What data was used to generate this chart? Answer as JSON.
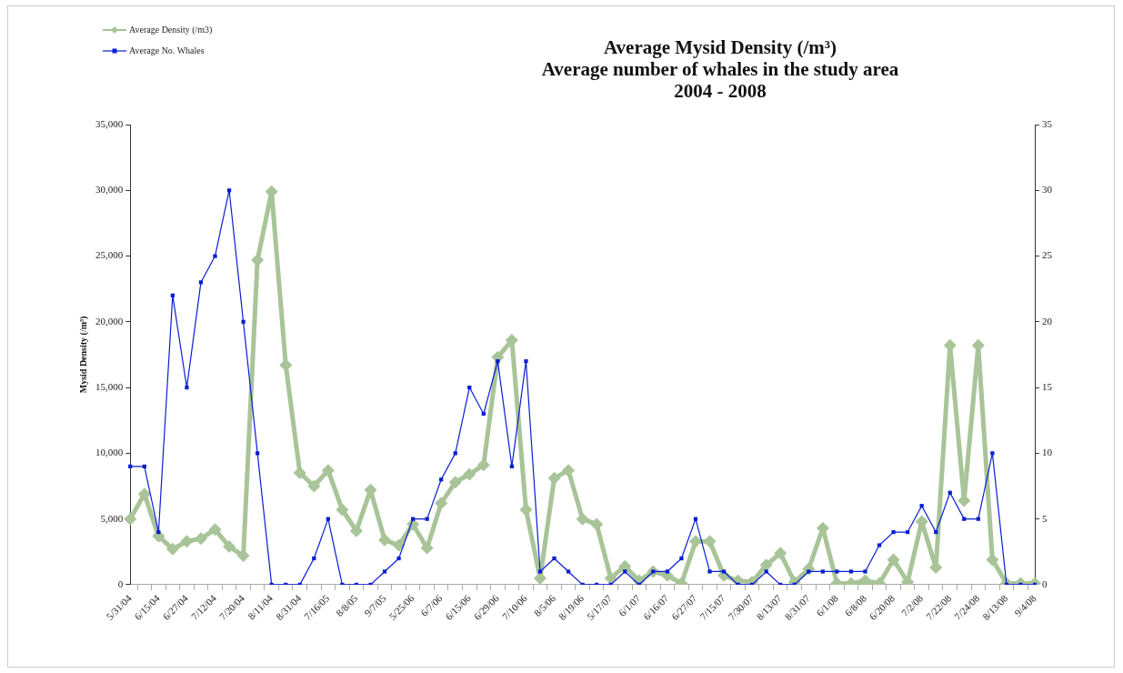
{
  "chart_data": {
    "type": "line",
    "title": "Average Mysid Density (/m³)\nAverage number of whales in the study area\n2004 - 2008",
    "ylabel": "Mysid Density (/m³)",
    "categories": [
      "5/31/04",
      null,
      "6/15/04",
      null,
      "6/27/04",
      null,
      "7/12/04",
      null,
      "7/20/04",
      null,
      "8/11/04",
      null,
      "8/31/04",
      null,
      "7/16/05",
      null,
      "8/8/05",
      null,
      "9/7/05",
      null,
      "5/25/06",
      null,
      "6/7/06",
      null,
      "6/15/06",
      null,
      "6/29/06",
      null,
      "7/10/06",
      null,
      "8/5/06",
      null,
      "8/19/06",
      null,
      "5/17/07",
      null,
      "6/1/07",
      null,
      "6/16/07",
      null,
      "6/27/07",
      null,
      "7/15/07",
      null,
      "7/30/07",
      null,
      "8/13/07",
      null,
      "8/31/07",
      null,
      "6/1/08",
      null,
      "6/8/08",
      null,
      "6/20/08",
      null,
      "7/2/08",
      null,
      "7/22/08",
      null,
      "7/24/08",
      null,
      "8/13/08",
      null,
      "9/4/08"
    ],
    "series": [
      {
        "name": "Average Density (/m3)",
        "color": "#a8c498",
        "marker": "diamond",
        "values": [
          5000,
          6900,
          3700,
          2700,
          3300,
          3500,
          4200,
          2900,
          2200,
          24700,
          29900,
          16700,
          8500,
          7500,
          8700,
          5700,
          4100,
          7200,
          3400,
          3000,
          4600,
          2800,
          6200,
          7800,
          8400,
          9100,
          17300,
          18600,
          5700,
          500,
          8100,
          8700,
          5000,
          4600,
          500,
          1400,
          300,
          1000,
          700,
          100,
          3300,
          3300,
          700,
          300,
          200,
          1500,
          2400,
          200,
          1200,
          4300,
          100,
          100,
          300,
          100,
          1900,
          200,
          4800,
          1300,
          18200,
          6400,
          18200,
          1900,
          100,
          100,
          100
        ]
      },
      {
        "name": "Average No. Whales",
        "color": "#0a1ed2",
        "marker": "square",
        "axis": "y2",
        "values": [
          9,
          9,
          4,
          22,
          15,
          23,
          25,
          30,
          20,
          10,
          0,
          0,
          0,
          2,
          5,
          0,
          0,
          0,
          1,
          2,
          5,
          5,
          8,
          10,
          15,
          13,
          17,
          9,
          17,
          1,
          2,
          1,
          0,
          0,
          0,
          1,
          0,
          1,
          1,
          2,
          5,
          1,
          1,
          0,
          0,
          1,
          0,
          0,
          1,
          1,
          1,
          1,
          1,
          3,
          4,
          4,
          6,
          4,
          7,
          5,
          5,
          10,
          0,
          0,
          0
        ]
      }
    ],
    "ylim": [
      0,
      35000
    ],
    "yticks": [
      0,
      {
        "value": 5000,
        "label": "5,000"
      },
      {
        "value": 10000,
        "label": "10,000"
      },
      {
        "value": 15000,
        "label": "15,000"
      },
      {
        "value": 20000,
        "label": "20,000"
      },
      {
        "value": 25000,
        "label": "25,000"
      },
      {
        "value": 30000,
        "label": "30,000"
      },
      {
        "value": 35000,
        "label": "35,000"
      }
    ],
    "y2lim": [
      0,
      35
    ],
    "y2ticks": [
      0,
      5,
      10,
      15,
      20,
      25,
      30,
      35
    ],
    "grid": false,
    "legend": "top left"
  }
}
